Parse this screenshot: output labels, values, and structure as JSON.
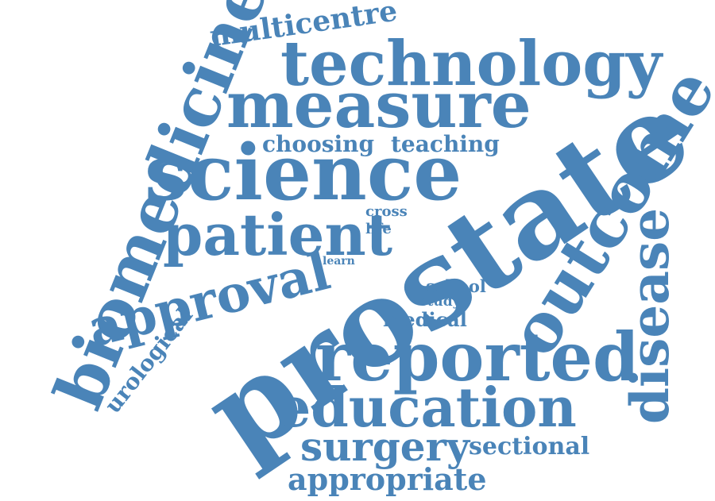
{
  "colors": {
    "word": "#4a84b8",
    "background": "#ffffff"
  },
  "words": {
    "prostate": "prostate",
    "science": "science",
    "measure": "measure",
    "technology": "technology",
    "reported": "reported",
    "biomedicine": "biomedicine",
    "outcome": "outcome",
    "disease": "disease",
    "patient": "patient",
    "approval": "approval",
    "education": "education",
    "surgery": "surgery",
    "appropriate": "appropriate",
    "multicentre": "multicentre",
    "choosing": "choosing",
    "teaching": "teaching",
    "sectional": "sectional",
    "urological": "urological",
    "medical": "medical",
    "school": "school",
    "study": "study",
    "cross": "cross",
    "life": "life",
    "learn": "learn"
  }
}
